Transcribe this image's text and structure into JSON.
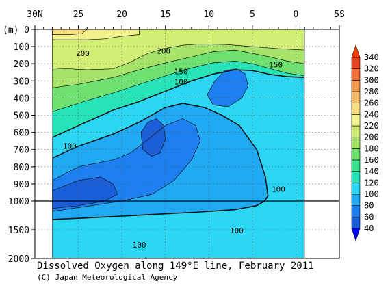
{
  "chart_data": {
    "type": "heatmap",
    "title": "Dissolved Oxygen along 149°E line, February 2011",
    "credit": "(C) Japan Meteorological Agency",
    "ylabel": "(m)",
    "x_axis": {
      "range": [
        30,
        -5
      ],
      "ticks": [
        30,
        25,
        20,
        15,
        10,
        5,
        0,
        -5
      ],
      "tick_labels": [
        "30N",
        "25",
        "20",
        "15",
        "10",
        "5",
        "0",
        "5S"
      ]
    },
    "y_axis": {
      "upper_range": [
        0,
        1000
      ],
      "lower_range": [
        1000,
        2000
      ],
      "upper_ticks": [
        0,
        100,
        200,
        300,
        400,
        500,
        600,
        700,
        800,
        900,
        1000
      ],
      "lower_ticks": [
        1500,
        2000
      ],
      "tick_labels": [
        "0",
        "100",
        "200",
        "300",
        "400",
        "500",
        "600",
        "700",
        "800",
        "900",
        "1000",
        "1500",
        "2000"
      ],
      "split_depth": 1000
    },
    "data_extent": {
      "lat_north": 28,
      "lat_south": -1
    },
    "colorbar": {
      "levels": [
        40,
        60,
        80,
        100,
        120,
        140,
        160,
        180,
        200,
        220,
        240,
        260,
        280,
        300,
        320,
        340
      ],
      "labels": [
        "40",
        "60",
        "80",
        "100",
        "120",
        "140",
        "160",
        "180",
        "200",
        "220",
        "240",
        "260",
        "280",
        "300",
        "320",
        "340"
      ],
      "colors": [
        "#1a5ed8",
        "#1e7ff0",
        "#20aaf4",
        "#2ad6f2",
        "#26e3b8",
        "#3ae08a",
        "#6ee070",
        "#a6e368",
        "#d3ee74",
        "#f2f38e",
        "#f8de80",
        "#f7be6a",
        "#f49a50",
        "#f07038",
        "#e84420"
      ],
      "below_color": "#0000ff",
      "above_color": "#ff3c00"
    },
    "contour_labels": [
      {
        "text": "200",
        "lat": 24.5,
        "depth": 140
      },
      {
        "text": "200",
        "lat": 15.2,
        "depth": 125
      },
      {
        "text": "150",
        "lat": 13.2,
        "depth": 245
      },
      {
        "text": "150",
        "lat": 2.3,
        "depth": 205
      },
      {
        "text": "100",
        "lat": 13.2,
        "depth": 305
      },
      {
        "text": "100",
        "lat": 26.0,
        "depth": 680
      },
      {
        "text": "100",
        "lat": 2.0,
        "depth": 930
      },
      {
        "text": "100",
        "lat": 6.8,
        "depth": 1510
      },
      {
        "text": "100",
        "lat": 18.0,
        "depth": 1760
      }
    ],
    "regions": [
      {
        "value": 130,
        "color": "#26e3b8",
        "points": [
          [
            28,
            0
          ],
          [
            -1,
            0
          ],
          [
            -1,
            2000
          ],
          [
            28,
            2000
          ]
        ]
      },
      {
        "value": 110,
        "color": "#2ad6f2",
        "points": [
          [
            28,
            630
          ],
          [
            25,
            560
          ],
          [
            21,
            470
          ],
          [
            18,
            420
          ],
          [
            15,
            360
          ],
          [
            12,
            300
          ],
          [
            9.5,
            260
          ],
          [
            7,
            235
          ],
          [
            5,
            240
          ],
          [
            3,
            262
          ],
          [
            1,
            275
          ],
          [
            -1,
            280
          ],
          [
            -1,
            2000
          ],
          [
            28,
            2000
          ]
        ]
      },
      {
        "value": 150,
        "color": "#6ee070",
        "points": [
          [
            28,
            0
          ],
          [
            -1,
            0
          ],
          [
            -1,
            270
          ],
          [
            1,
            255
          ],
          [
            3,
            228
          ],
          [
            5,
            200
          ],
          [
            7,
            185
          ],
          [
            9.5,
            195
          ],
          [
            12,
            225
          ],
          [
            15,
            270
          ],
          [
            18,
            320
          ],
          [
            21,
            370
          ],
          [
            25,
            430
          ],
          [
            28,
            480
          ]
        ]
      },
      {
        "value": 170,
        "color": "#a6e368",
        "points": [
          [
            28,
            0
          ],
          [
            -1,
            0
          ],
          [
            -1,
            200
          ],
          [
            1,
            185
          ],
          [
            3,
            160
          ],
          [
            5,
            140
          ],
          [
            7,
            120
          ],
          [
            9.5,
            130
          ],
          [
            12,
            160
          ],
          [
            15,
            195
          ],
          [
            18,
            235
          ],
          [
            21,
            280
          ],
          [
            25,
            320
          ],
          [
            28,
            340
          ]
        ]
      },
      {
        "value": 190,
        "color": "#d3ee74",
        "points": [
          [
            28,
            0
          ],
          [
            -1,
            0
          ],
          [
            -1,
            120
          ],
          [
            2,
            112
          ],
          [
            5,
            100
          ],
          [
            8,
            88
          ],
          [
            11,
            85
          ],
          [
            13,
            92
          ],
          [
            15,
            110
          ],
          [
            17,
            140
          ],
          [
            19,
            190
          ],
          [
            21,
            230
          ],
          [
            24,
            235
          ],
          [
            26,
            230
          ],
          [
            28,
            225
          ]
        ]
      },
      {
        "value": 210,
        "color": "#f2f38e",
        "points": [
          [
            28,
            0
          ],
          [
            18,
            0
          ],
          [
            18,
            30
          ],
          [
            20,
            40
          ],
          [
            22,
            55
          ],
          [
            24,
            60
          ],
          [
            26,
            60
          ],
          [
            28,
            60
          ]
        ]
      },
      {
        "value": 230,
        "color": "#f8de80",
        "points": [
          [
            28,
            0
          ],
          [
            24,
            0
          ],
          [
            24.6,
            25
          ],
          [
            26,
            30
          ],
          [
            28,
            30
          ]
        ]
      },
      {
        "value": 90,
        "color": "#20aaf4",
        "points": [
          [
            28,
            750
          ],
          [
            25,
            680
          ],
          [
            21,
            610
          ],
          [
            18,
            540
          ],
          [
            15,
            455
          ],
          [
            13,
            430
          ],
          [
            10.5,
            455
          ],
          [
            8.5,
            500
          ],
          [
            6.5,
            560
          ],
          [
            4.5,
            700
          ],
          [
            3.5,
            860
          ],
          [
            3.2,
            970
          ],
          [
            3.6,
            1000
          ],
          [
            4.5,
            1080
          ],
          [
            7,
            1150
          ],
          [
            11,
            1190
          ],
          [
            16,
            1230
          ],
          [
            21,
            1270
          ],
          [
            25,
            1300
          ],
          [
            28,
            1320
          ]
        ]
      },
      {
        "value": 70,
        "color": "#1e7ff0",
        "points": [
          [
            28,
            880
          ],
          [
            25,
            800
          ],
          [
            21,
            760
          ],
          [
            19,
            720
          ],
          [
            17,
            640
          ],
          [
            15,
            560
          ],
          [
            13,
            520
          ],
          [
            11.5,
            560
          ],
          [
            11,
            650
          ],
          [
            12,
            760
          ],
          [
            14,
            880
          ],
          [
            16.5,
            960
          ],
          [
            20,
            1000
          ],
          [
            24,
            1090
          ],
          [
            28,
            1180
          ]
        ]
      },
      {
        "value": 70,
        "color": "#1e7ff0",
        "points": [
          [
            10.2,
            380
          ],
          [
            9.3,
            300
          ],
          [
            8.2,
            240
          ],
          [
            6.8,
            230
          ],
          [
            5.8,
            260
          ],
          [
            5.5,
            330
          ],
          [
            6.2,
            400
          ],
          [
            7.8,
            450
          ],
          [
            9.5,
            440
          ]
        ]
      },
      {
        "value": 50,
        "color": "#1a5ed8",
        "points": [
          [
            28,
            940
          ],
          [
            25,
            880
          ],
          [
            22.5,
            860
          ],
          [
            21,
            900
          ],
          [
            20.5,
            960
          ],
          [
            22,
            1000
          ],
          [
            25,
            1080
          ],
          [
            28,
            1130
          ]
        ]
      },
      {
        "value": 50,
        "color": "#1a5ed8",
        "points": [
          [
            17.8,
            600
          ],
          [
            17,
            540
          ],
          [
            16,
            520
          ],
          [
            15.2,
            560
          ],
          [
            15,
            640
          ],
          [
            15.6,
            720
          ],
          [
            16.6,
            740
          ],
          [
            17.6,
            700
          ]
        ]
      }
    ]
  }
}
